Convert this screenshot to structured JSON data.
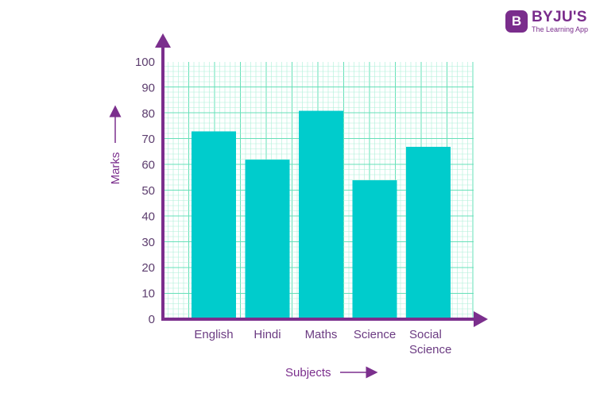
{
  "logo": {
    "badge": "B",
    "name": "BYJU'S",
    "tagline": "The Learning App"
  },
  "chart_data": {
    "type": "bar",
    "categories": [
      "English",
      "Hindi",
      "Maths",
      "Science",
      "Social Science"
    ],
    "values": [
      73,
      62,
      81,
      54,
      67
    ],
    "title": "",
    "xlabel": "Subjects",
    "ylabel": "Marks",
    "ylim": [
      0,
      100
    ],
    "yticks": [
      0,
      10,
      20,
      30,
      40,
      50,
      60,
      70,
      80,
      90,
      100
    ],
    "grid": true,
    "colors": {
      "bar": "#00cccc",
      "axis": "#7b2f8d",
      "grid_minor": "#aef0d8",
      "grid_major": "#66e0b8"
    }
  }
}
